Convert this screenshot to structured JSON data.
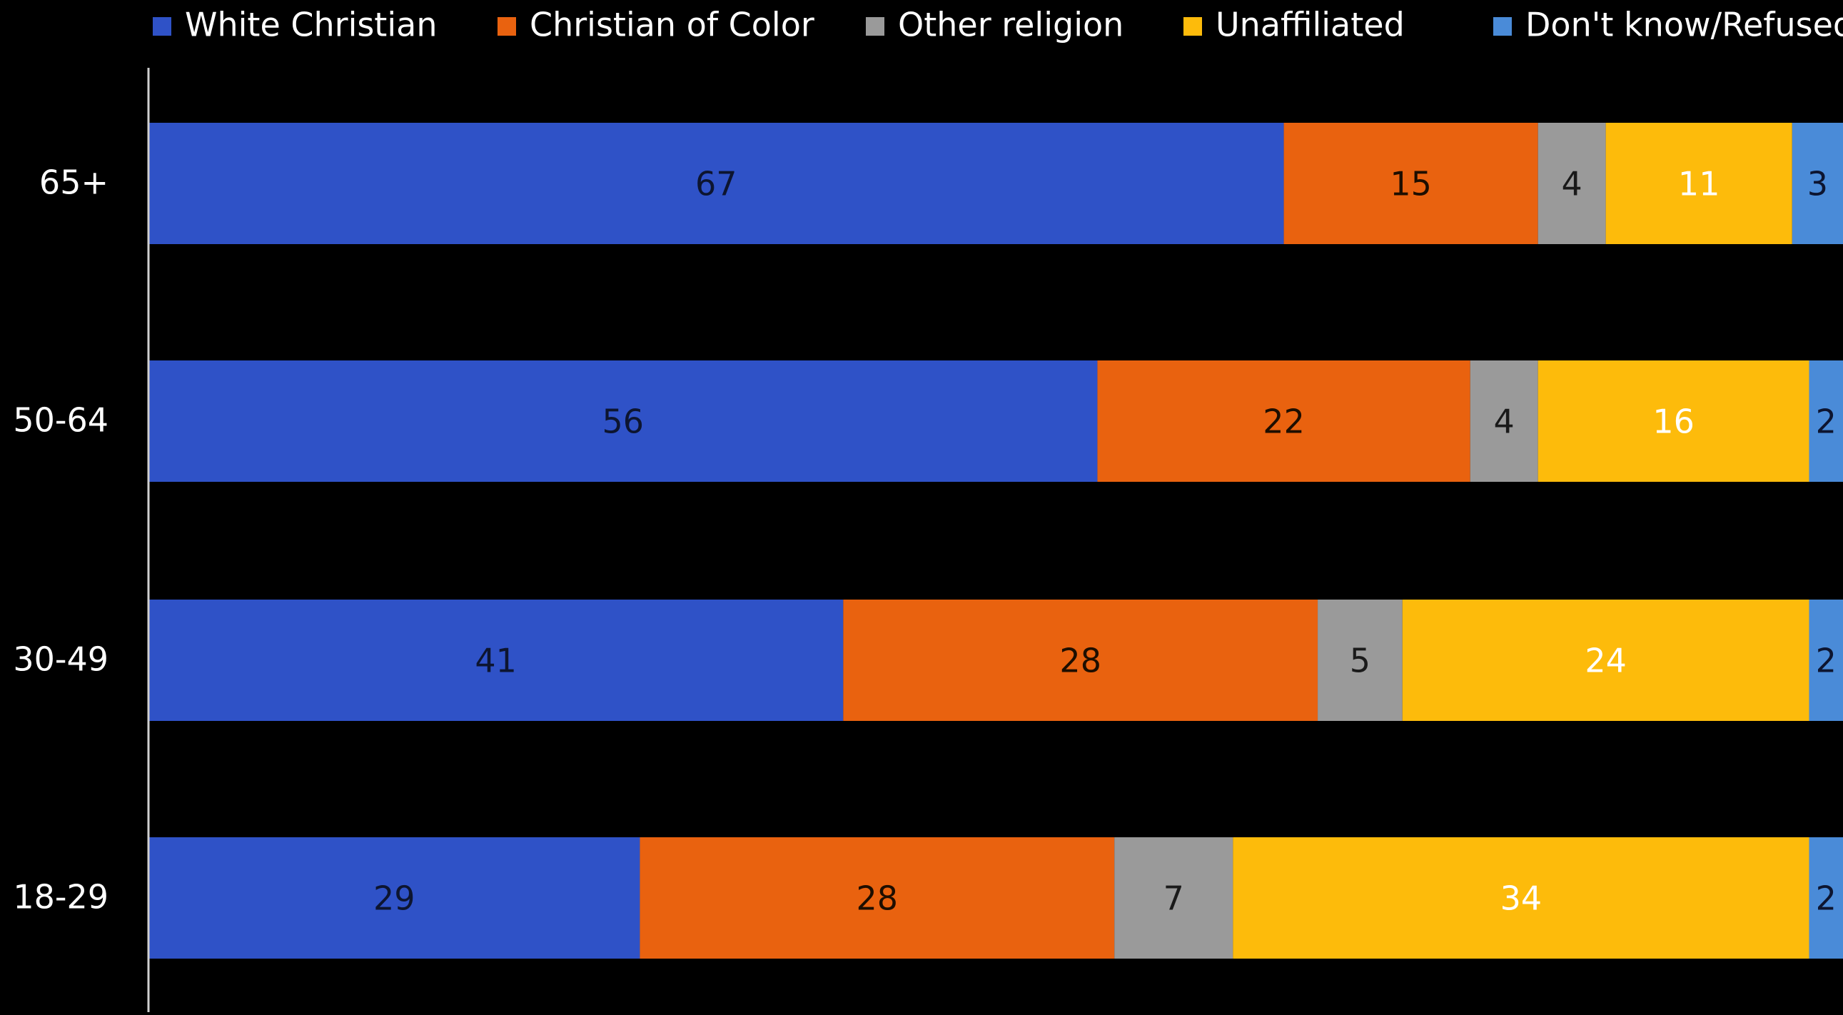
{
  "chart_data": {
    "type": "bar",
    "orientation": "horizontal",
    "stacked": true,
    "title": "",
    "xlabel": "",
    "ylabel": "",
    "xlim": [
      0,
      100
    ],
    "grid": false,
    "legend_position": "top",
    "categories": [
      "65+",
      "50-64",
      "30-49",
      "18-29"
    ],
    "series": [
      {
        "name": "White Christian",
        "color": "#2F52C7",
        "label_color": "#0D1530",
        "values": [
          67,
          56,
          41,
          29
        ]
      },
      {
        "name": "Christian of Color",
        "color": "#E9620F",
        "label_color": "#1E0E00",
        "values": [
          15,
          22,
          28,
          28
        ]
      },
      {
        "name": "Other religion",
        "color": "#9A9A9A",
        "label_color": "#1A1A1A",
        "values": [
          4,
          4,
          5,
          7
        ]
      },
      {
        "name": "Unaffiliated",
        "color": "#FDBB0B",
        "label_color": "#FFFFFF",
        "values": [
          11,
          16,
          24,
          34
        ]
      },
      {
        "name": "Don't know/Refused",
        "color": "#4A8BD8",
        "label_color": "#0D1530",
        "values": [
          3,
          2,
          2,
          2
        ]
      }
    ]
  }
}
